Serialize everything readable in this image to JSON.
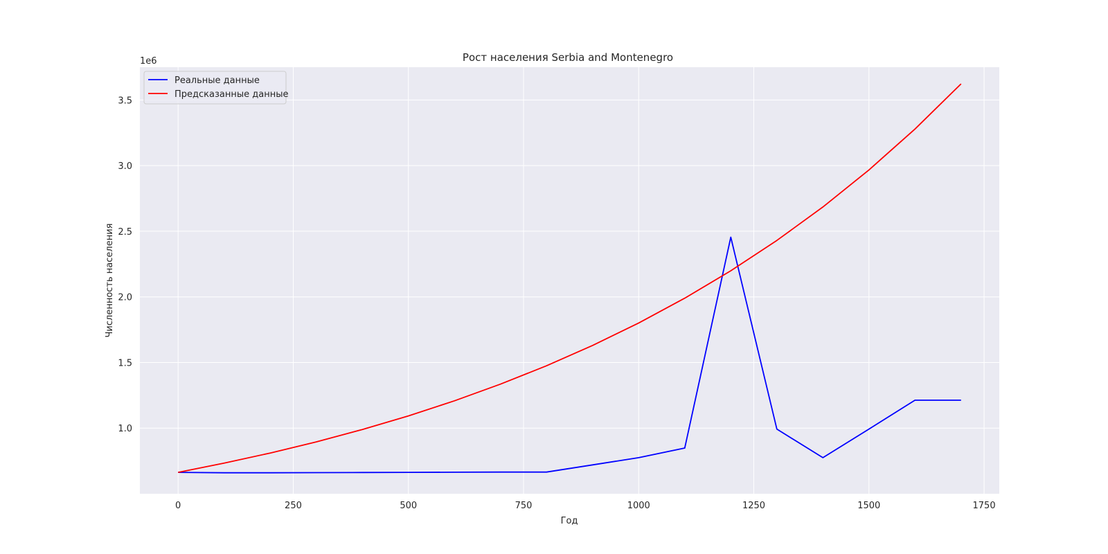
{
  "chart_data": {
    "type": "line",
    "title": "Рост населения Serbia and Montenegro",
    "xlabel": "Год",
    "ylabel": "Численность населения",
    "y_offset_label": "1e6",
    "xlim": [
      -83,
      1783
    ],
    "ylim": [
      0.5,
      3.75
    ],
    "x_ticks": [
      0,
      250,
      500,
      750,
      1000,
      1250,
      1500,
      1750
    ],
    "x_tick_labels": [
      "0",
      "250",
      "500",
      "750",
      "1000",
      "1250",
      "1500",
      "1750"
    ],
    "y_ticks": [
      1.0,
      1.5,
      2.0,
      2.5,
      3.0,
      3.5
    ],
    "y_tick_labels": [
      "1.0",
      "1.5",
      "2.0",
      "2.5",
      "3.0",
      "3.5"
    ],
    "grid": true,
    "legend_position": "upper-left",
    "x": [
      0,
      100,
      200,
      300,
      400,
      500,
      600,
      700,
      800,
      900,
      1000,
      1100,
      1200,
      1300,
      1400,
      1500,
      1600,
      1700
    ],
    "series": [
      {
        "name": "Реальные данные",
        "color": "#0000ff",
        "values": [
          0.663,
          0.66,
          0.66,
          0.661,
          0.662,
          0.663,
          0.664,
          0.665,
          0.665,
          0.72,
          0.775,
          0.848,
          2.455,
          0.993,
          0.775,
          0.993,
          1.213,
          1.213
        ]
      },
      {
        "name": "Предсказанные данные",
        "color": "#ff0000",
        "values": [
          0.663,
          0.733,
          0.81,
          0.895,
          0.989,
          1.093,
          1.208,
          1.335,
          1.475,
          1.63,
          1.801,
          1.99,
          2.199,
          2.43,
          2.685,
          2.967,
          3.279,
          3.623
        ]
      }
    ]
  },
  "colors": {
    "plot_background": "#eaeaf2",
    "grid": "#ffffff"
  }
}
